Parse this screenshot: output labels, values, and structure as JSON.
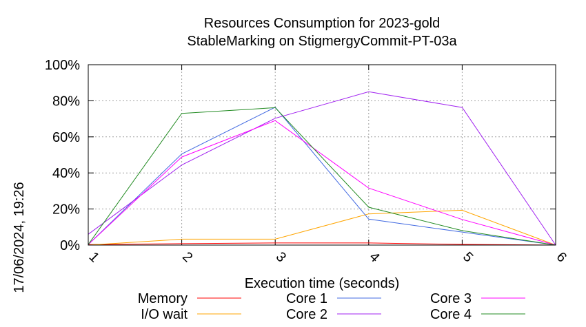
{
  "chart_data": {
    "type": "line",
    "title": "Resources Consumption for 2023-gold",
    "subtitle": "StableMarking on StigmergyCommit-PT-03a",
    "xlabel": "Execution time (seconds)",
    "ylabel": "",
    "side_label": "17/06/2024, 19:26",
    "x": [
      1,
      2,
      3,
      4,
      5,
      6
    ],
    "x_ticks": [
      "1",
      "2",
      "3",
      "4",
      "5",
      "6"
    ],
    "y_ticks": [
      "0%",
      "20%",
      "40%",
      "60%",
      "80%",
      "100%"
    ],
    "xlim": [
      1,
      6
    ],
    "ylim": [
      0,
      100
    ],
    "grid": true,
    "legend_position": "bottom",
    "series": [
      {
        "name": "Memory",
        "color": "#ff0000",
        "values": [
          0.3,
          0.8,
          1.2,
          1.2,
          0.4,
          0
        ]
      },
      {
        "name": "I/O wait",
        "color": "#ffa500",
        "values": [
          0,
          3.3,
          3.3,
          17.3,
          19.3,
          0
        ]
      },
      {
        "name": "Core 1",
        "color": "#4169e1",
        "values": [
          0.3,
          50.5,
          76.4,
          14.4,
          7.2,
          0
        ]
      },
      {
        "name": "Core 2",
        "color": "#a020f0",
        "values": [
          6.0,
          44.4,
          70.3,
          85.0,
          76.3,
          0
        ]
      },
      {
        "name": "Core 3",
        "color": "#ff00ff",
        "values": [
          0.3,
          48.8,
          69.0,
          31.6,
          14.2,
          0
        ]
      },
      {
        "name": "Core 4",
        "color": "#228b22",
        "values": [
          0.3,
          73.0,
          76.2,
          21.0,
          8.0,
          0
        ]
      }
    ]
  }
}
